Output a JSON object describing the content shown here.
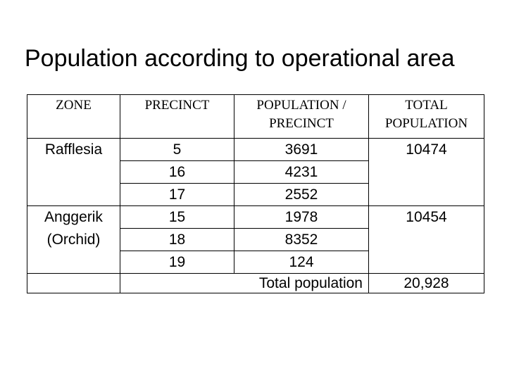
{
  "title": "Population according to operational area",
  "colors": {
    "background": "#ffffff",
    "text": "#000000",
    "table_border": "#000000"
  },
  "table": {
    "headers": [
      "ZONE",
      "PRECINCT",
      "POPULATION / PRECINCT",
      "TOTAL POPULATION"
    ],
    "zones": [
      {
        "zone": "Rafflesia",
        "total": "10474",
        "rows": [
          {
            "precinct": "5",
            "population": "3691"
          },
          {
            "precinct": "16",
            "population": "4231"
          },
          {
            "precinct": "17",
            "population": "2552"
          }
        ]
      },
      {
        "zone": "Anggerik (Orchid)",
        "total": "10454",
        "rows": [
          {
            "precinct": "15",
            "population": "1978"
          },
          {
            "precinct": "18",
            "population": "8352"
          },
          {
            "precinct": "19",
            "population": "124"
          }
        ]
      }
    ],
    "footer": {
      "label": "Total population",
      "value": "20,928"
    }
  }
}
